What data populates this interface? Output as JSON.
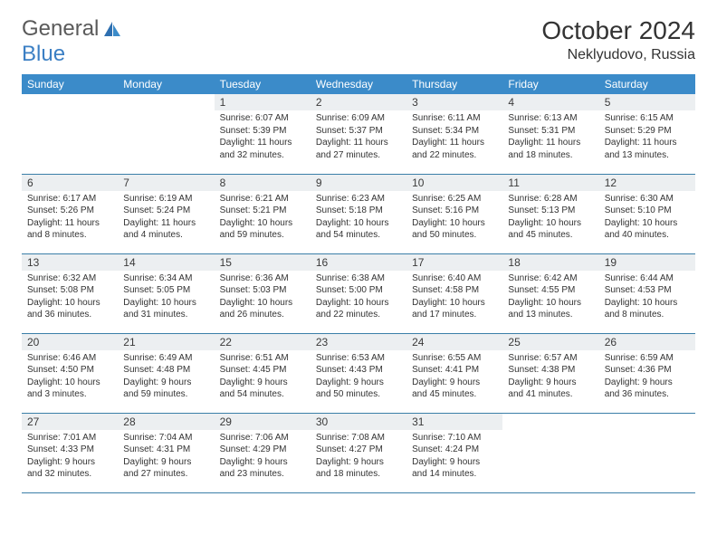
{
  "logo": {
    "general": "General",
    "blue": "Blue"
  },
  "title": "October 2024",
  "location": "Neklyudovo, Russia",
  "colors": {
    "header_bg": "#3b8bc9",
    "header_text": "#ffffff",
    "daynum_bg": "#eceff1",
    "border": "#3b7fa8",
    "logo_gray": "#5a5a5a",
    "logo_blue": "#3b7fc4"
  },
  "weekdays": [
    "Sunday",
    "Monday",
    "Tuesday",
    "Wednesday",
    "Thursday",
    "Friday",
    "Saturday"
  ],
  "weeks": [
    [
      {
        "n": "",
        "sun": "",
        "set": "",
        "day": ""
      },
      {
        "n": "",
        "sun": "",
        "set": "",
        "day": ""
      },
      {
        "n": "1",
        "sun": "Sunrise: 6:07 AM",
        "set": "Sunset: 5:39 PM",
        "day": "Daylight: 11 hours and 32 minutes."
      },
      {
        "n": "2",
        "sun": "Sunrise: 6:09 AM",
        "set": "Sunset: 5:37 PM",
        "day": "Daylight: 11 hours and 27 minutes."
      },
      {
        "n": "3",
        "sun": "Sunrise: 6:11 AM",
        "set": "Sunset: 5:34 PM",
        "day": "Daylight: 11 hours and 22 minutes."
      },
      {
        "n": "4",
        "sun": "Sunrise: 6:13 AM",
        "set": "Sunset: 5:31 PM",
        "day": "Daylight: 11 hours and 18 minutes."
      },
      {
        "n": "5",
        "sun": "Sunrise: 6:15 AM",
        "set": "Sunset: 5:29 PM",
        "day": "Daylight: 11 hours and 13 minutes."
      }
    ],
    [
      {
        "n": "6",
        "sun": "Sunrise: 6:17 AM",
        "set": "Sunset: 5:26 PM",
        "day": "Daylight: 11 hours and 8 minutes."
      },
      {
        "n": "7",
        "sun": "Sunrise: 6:19 AM",
        "set": "Sunset: 5:24 PM",
        "day": "Daylight: 11 hours and 4 minutes."
      },
      {
        "n": "8",
        "sun": "Sunrise: 6:21 AM",
        "set": "Sunset: 5:21 PM",
        "day": "Daylight: 10 hours and 59 minutes."
      },
      {
        "n": "9",
        "sun": "Sunrise: 6:23 AM",
        "set": "Sunset: 5:18 PM",
        "day": "Daylight: 10 hours and 54 minutes."
      },
      {
        "n": "10",
        "sun": "Sunrise: 6:25 AM",
        "set": "Sunset: 5:16 PM",
        "day": "Daylight: 10 hours and 50 minutes."
      },
      {
        "n": "11",
        "sun": "Sunrise: 6:28 AM",
        "set": "Sunset: 5:13 PM",
        "day": "Daylight: 10 hours and 45 minutes."
      },
      {
        "n": "12",
        "sun": "Sunrise: 6:30 AM",
        "set": "Sunset: 5:10 PM",
        "day": "Daylight: 10 hours and 40 minutes."
      }
    ],
    [
      {
        "n": "13",
        "sun": "Sunrise: 6:32 AM",
        "set": "Sunset: 5:08 PM",
        "day": "Daylight: 10 hours and 36 minutes."
      },
      {
        "n": "14",
        "sun": "Sunrise: 6:34 AM",
        "set": "Sunset: 5:05 PM",
        "day": "Daylight: 10 hours and 31 minutes."
      },
      {
        "n": "15",
        "sun": "Sunrise: 6:36 AM",
        "set": "Sunset: 5:03 PM",
        "day": "Daylight: 10 hours and 26 minutes."
      },
      {
        "n": "16",
        "sun": "Sunrise: 6:38 AM",
        "set": "Sunset: 5:00 PM",
        "day": "Daylight: 10 hours and 22 minutes."
      },
      {
        "n": "17",
        "sun": "Sunrise: 6:40 AM",
        "set": "Sunset: 4:58 PM",
        "day": "Daylight: 10 hours and 17 minutes."
      },
      {
        "n": "18",
        "sun": "Sunrise: 6:42 AM",
        "set": "Sunset: 4:55 PM",
        "day": "Daylight: 10 hours and 13 minutes."
      },
      {
        "n": "19",
        "sun": "Sunrise: 6:44 AM",
        "set": "Sunset: 4:53 PM",
        "day": "Daylight: 10 hours and 8 minutes."
      }
    ],
    [
      {
        "n": "20",
        "sun": "Sunrise: 6:46 AM",
        "set": "Sunset: 4:50 PM",
        "day": "Daylight: 10 hours and 3 minutes."
      },
      {
        "n": "21",
        "sun": "Sunrise: 6:49 AM",
        "set": "Sunset: 4:48 PM",
        "day": "Daylight: 9 hours and 59 minutes."
      },
      {
        "n": "22",
        "sun": "Sunrise: 6:51 AM",
        "set": "Sunset: 4:45 PM",
        "day": "Daylight: 9 hours and 54 minutes."
      },
      {
        "n": "23",
        "sun": "Sunrise: 6:53 AM",
        "set": "Sunset: 4:43 PM",
        "day": "Daylight: 9 hours and 50 minutes."
      },
      {
        "n": "24",
        "sun": "Sunrise: 6:55 AM",
        "set": "Sunset: 4:41 PM",
        "day": "Daylight: 9 hours and 45 minutes."
      },
      {
        "n": "25",
        "sun": "Sunrise: 6:57 AM",
        "set": "Sunset: 4:38 PM",
        "day": "Daylight: 9 hours and 41 minutes."
      },
      {
        "n": "26",
        "sun": "Sunrise: 6:59 AM",
        "set": "Sunset: 4:36 PM",
        "day": "Daylight: 9 hours and 36 minutes."
      }
    ],
    [
      {
        "n": "27",
        "sun": "Sunrise: 7:01 AM",
        "set": "Sunset: 4:33 PM",
        "day": "Daylight: 9 hours and 32 minutes."
      },
      {
        "n": "28",
        "sun": "Sunrise: 7:04 AM",
        "set": "Sunset: 4:31 PM",
        "day": "Daylight: 9 hours and 27 minutes."
      },
      {
        "n": "29",
        "sun": "Sunrise: 7:06 AM",
        "set": "Sunset: 4:29 PM",
        "day": "Daylight: 9 hours and 23 minutes."
      },
      {
        "n": "30",
        "sun": "Sunrise: 7:08 AM",
        "set": "Sunset: 4:27 PM",
        "day": "Daylight: 9 hours and 18 minutes."
      },
      {
        "n": "31",
        "sun": "Sunrise: 7:10 AM",
        "set": "Sunset: 4:24 PM",
        "day": "Daylight: 9 hours and 14 minutes."
      },
      {
        "n": "",
        "sun": "",
        "set": "",
        "day": ""
      },
      {
        "n": "",
        "sun": "",
        "set": "",
        "day": ""
      }
    ]
  ]
}
